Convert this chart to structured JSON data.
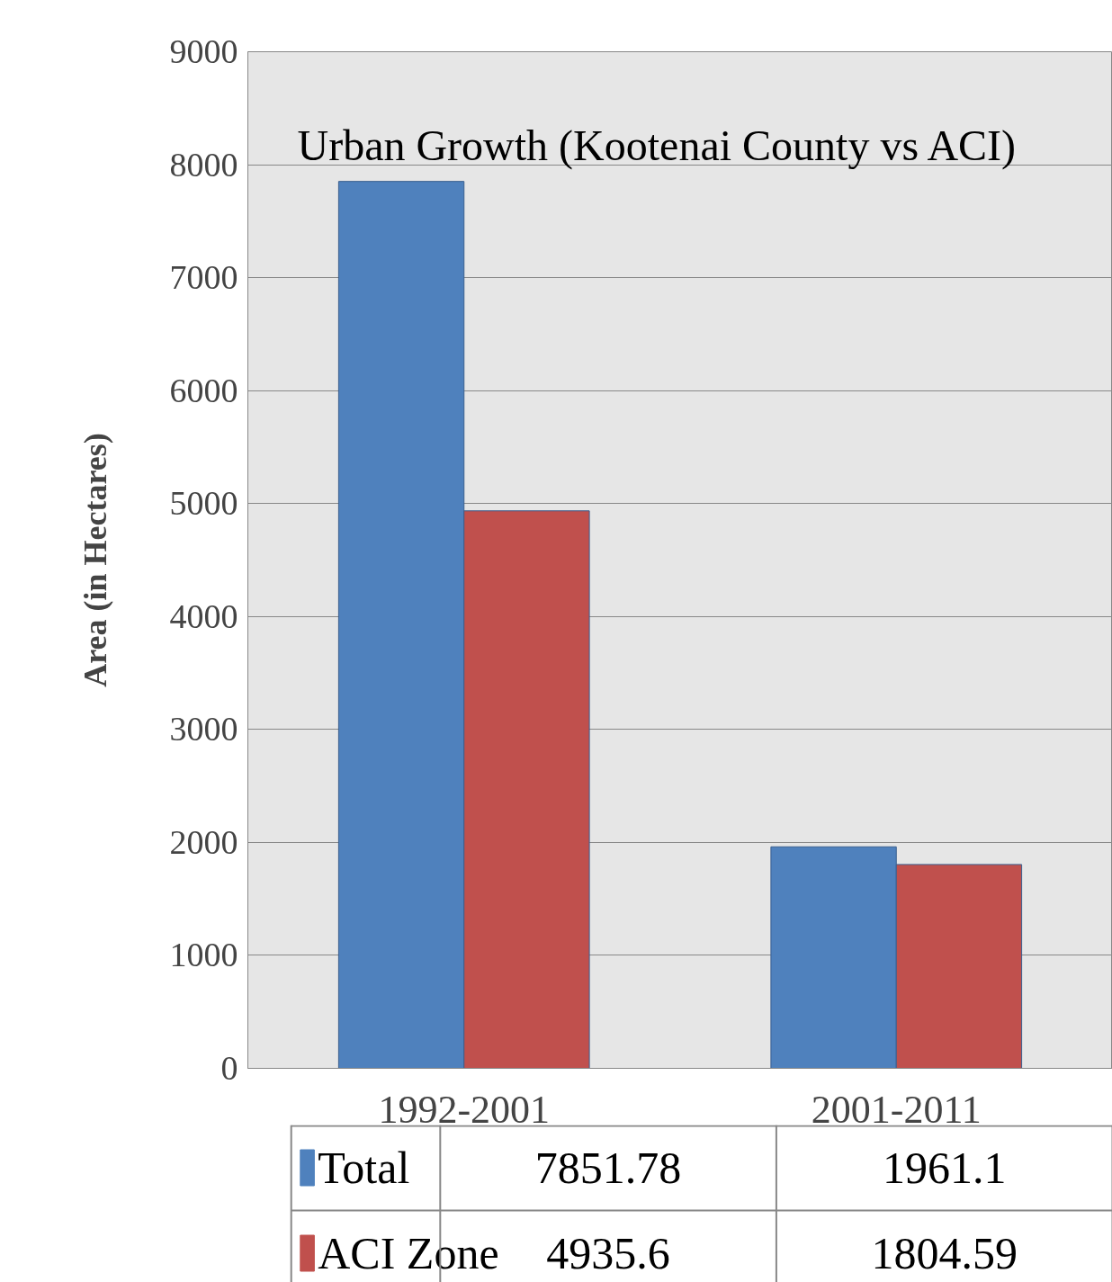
{
  "chart_data": {
    "type": "bar",
    "title": "Urban Growth (Kootenai County vs ACI)",
    "ylabel": "Area (in Hectares)",
    "categories": [
      "1992-2001",
      "2001-2011"
    ],
    "series": [
      {
        "name": "Total",
        "color": "#4f81bd",
        "values": [
          7851.78,
          1961.1
        ]
      },
      {
        "name": "ACI Zone",
        "color": "#c0504d",
        "values": [
          4935.6,
          1804.59
        ]
      }
    ],
    "ylim": [
      0,
      9000
    ],
    "yticks": [
      0,
      1000,
      2000,
      3000,
      4000,
      5000,
      6000,
      7000,
      8000,
      9000
    ],
    "grid": "y",
    "legend": "bottom",
    "data_labels": true
  }
}
